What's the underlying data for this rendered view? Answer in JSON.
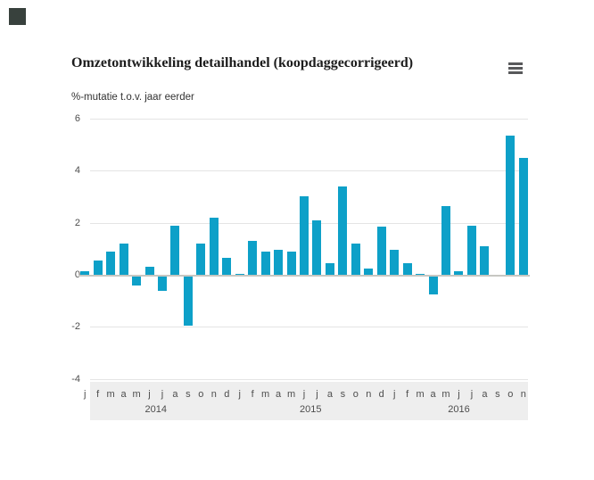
{
  "header": {
    "title": "Omzetontwikkeling detailhandel (koopdaggecorrigeerd)",
    "subtitle": "%-mutatie t.o.v. jaar eerder"
  },
  "menu": {
    "icon": "hamburger-icon"
  },
  "colors": {
    "bar": "#0da0c8",
    "grid": "#e4e4e4",
    "zero_line": "#c7c7c2",
    "band": "#eeeeee",
    "title_text": "#1c1c1c",
    "axis_text": "#4d4d4d",
    "menu_icon": "#58595b",
    "corner_square": "#38413d"
  },
  "chart_data": {
    "type": "bar",
    "title": "Omzetontwikkeling detailhandel (koopdaggecorrigeerd)",
    "ylabel": "%-mutatie t.o.v. jaar eerder",
    "ylim": [
      -4,
      6
    ],
    "yticks": [
      6,
      4,
      2,
      0,
      -2,
      -4
    ],
    "grid": true,
    "legend": "none",
    "month_labels": [
      "j",
      "f",
      "m",
      "a",
      "m",
      "j",
      "j",
      "a",
      "s",
      "o",
      "n",
      "d",
      "j",
      "f",
      "m",
      "a",
      "m",
      "j",
      "j",
      "a",
      "s",
      "o",
      "n",
      "d",
      "j",
      "f",
      "m",
      "a",
      "m",
      "j",
      "j",
      "a",
      "s",
      "o",
      "n"
    ],
    "years": [
      {
        "label": "2014",
        "start": 0,
        "count": 12
      },
      {
        "label": "2015",
        "start": 12,
        "count": 12
      },
      {
        "label": "2016",
        "start": 24,
        "count": 11
      }
    ],
    "values": [
      0.15,
      0.55,
      0.9,
      1.2,
      -0.35,
      0.3,
      -0.55,
      1.9,
      -1.9,
      1.2,
      2.2,
      0.65,
      0.05,
      1.3,
      0.9,
      0.95,
      0.9,
      3.0,
      2.1,
      0.45,
      3.4,
      1.2,
      0.25,
      1.85,
      0.95,
      0.45,
      0.05,
      -0.7,
      2.65,
      0.15,
      1.9,
      1.1,
      0.0,
      5.35,
      4.5
    ]
  }
}
